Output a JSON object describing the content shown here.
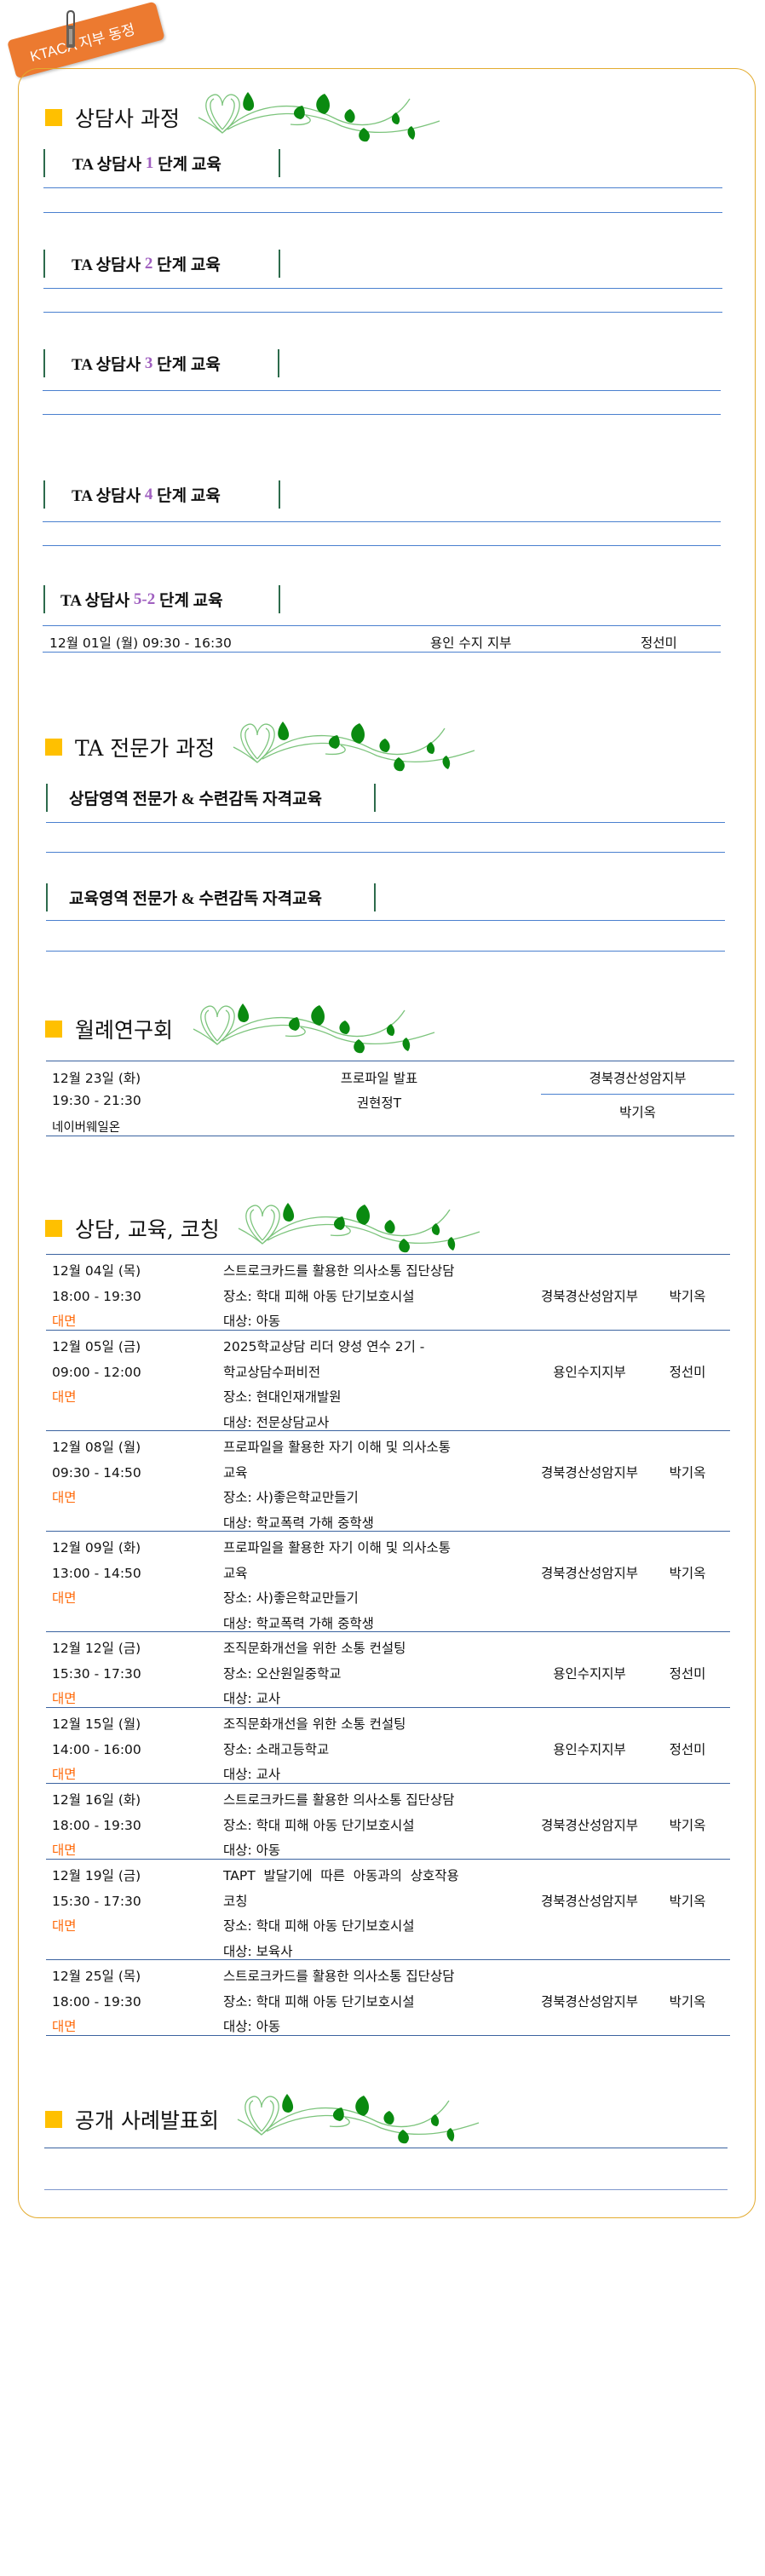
{
  "tag": {
    "label": "KTACA 지부 동정",
    "color": "#ec7a30"
  },
  "sections": {
    "counselor": {
      "title": "상담사 과정",
      "stages": [
        {
          "prefix": "TA 상담사 ",
          "num": "1",
          "suffix": " 단계 교육"
        },
        {
          "prefix": "TA 상담사 ",
          "num": "2",
          "suffix": " 단계 교육"
        },
        {
          "prefix": "TA 상담사 ",
          "num": "3",
          "suffix": " 단계 교육"
        },
        {
          "prefix": "TA 상담사 ",
          "num": "4",
          "suffix": " 단계 교육"
        },
        {
          "prefix": "TA 상담사 ",
          "num": "5-2",
          "suffix": " 단계 교육"
        }
      ],
      "stage5_row": {
        "datetime": "12월 01일 (월) 09:30 - 16:30",
        "branch": "용인 수지 지부",
        "name": "정선미"
      }
    },
    "expert": {
      "title": "TA 전문가 과정",
      "headers": [
        "상담영역 전문가 & 수련감독 자격교육",
        "교육영역 전문가 & 수련감독 자격교육"
      ]
    },
    "monthly": {
      "title": "월례연구회",
      "row": {
        "date": "12월 23일 (화)",
        "time": "19:30 - 21:30",
        "place": "네이버웨일온",
        "topic": "프로파일 발표",
        "presenter": "권현정T",
        "branch": "경북경산성암지부",
        "name": "박기옥"
      }
    },
    "coaching": {
      "title": "상담, 교육, 코칭",
      "rows": [
        {
          "date": "12월 04일 (목)",
          "time": "18:00 - 19:30",
          "mode": "대면",
          "desc": [
            "스트로크카드를 활용한 의사소통 집단상담",
            "장소: 학대 피해 아동 단기보호시설",
            "대상: 아동"
          ],
          "branch": "경북경산성암지부",
          "name": "박기옥"
        },
        {
          "date": "12월 05일 (금)",
          "time": "09:00 - 12:00",
          "mode": "대면",
          "desc": [
            "2025학교상담 리더 양성 연수 2기 -",
            "학교상담수퍼비전",
            "장소: 현대인재개발원",
            "대상: 전문상담교사"
          ],
          "branch": "용인수지지부",
          "name": "정선미"
        },
        {
          "date": "12월 08일 (월)",
          "time": "09:30 - 14:50",
          "mode": "대면",
          "desc": [
            "프로파일을 활용한 자기 이해 및 의사소통",
            "교육",
            "장소: 사)좋은학교만들기",
            "대상: 학교폭력 가해 중학생"
          ],
          "branch": "경북경산성암지부",
          "name": "박기옥"
        },
        {
          "date": "12월 09일 (화)",
          "time": "13:00 - 14:50",
          "mode": "대면",
          "desc": [
            "프로파일을 활용한 자기 이해 및 의사소통",
            "교육",
            "장소: 사)좋은학교만들기",
            "대상: 학교폭력 가해 중학생"
          ],
          "branch": "경북경산성암지부",
          "name": "박기옥"
        },
        {
          "date": "12월 12일 (금)",
          "time": "15:30 - 17:30",
          "mode": "대면",
          "desc": [
            "조직문화개선을 위한 소통 컨설팅",
            "장소: 오산원일중학교",
            "대상: 교사"
          ],
          "branch": "용인수지지부",
          "name": "정선미"
        },
        {
          "date": "12월 15일 (월)",
          "time": "14:00 - 16:00",
          "mode": "대면",
          "desc": [
            "조직문화개선을 위한 소통 컨설팅",
            "장소: 소래고등학교",
            "대상: 교사"
          ],
          "branch": "용인수지지부",
          "name": "정선미"
        },
        {
          "date": "12월 16일 (화)",
          "time": "18:00 - 19:30",
          "mode": "대면",
          "desc": [
            "스트로크카드를 활용한 의사소통 집단상담",
            "장소: 학대 피해 아동 단기보호시설",
            "대상: 아동"
          ],
          "branch": "경북경산성암지부",
          "name": "박기옥"
        },
        {
          "date": "12월 19일 (금)",
          "time": "15:30 - 17:30",
          "mode": "대면",
          "desc": [
            "TAPT  발달기에  따른  아동과의  상호작용",
            "코칭",
            "장소: 학대 피해 아동 단기보호시설",
            "대상: 보육사"
          ],
          "branch": "경북경산성암지부",
          "name": "박기옥"
        },
        {
          "date": "12월 25일 (목)",
          "time": "18:00 - 19:30",
          "mode": "대면",
          "desc": [
            "스트로크카드를 활용한 의사소통 집단상담",
            "장소: 학대 피해 아동 단기보호시설",
            "대상: 아동"
          ],
          "branch": "경북경산성암지부",
          "name": "박기옥"
        }
      ]
    },
    "public_case": {
      "title": "공개 사례발표회"
    }
  },
  "colors": {
    "accent_square": "#ffc000",
    "card_border": "#e3ab2e",
    "line": "#4a80cf",
    "stage_number": "#a060c0",
    "mode": "#ff6a0a",
    "stage_bar": "#2d6b4c"
  },
  "icons": {
    "vine": "heart-vine-ornament",
    "clip": "binder-clip"
  }
}
